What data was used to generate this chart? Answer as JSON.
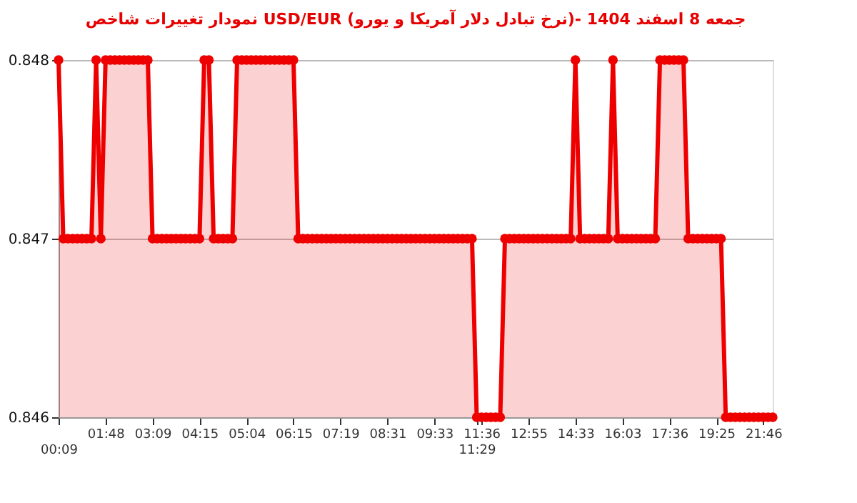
{
  "chart_data": {
    "type": "area",
    "title": "نمودار تغییرات شاخص USD/EUR (نرخ تبادل دلار آمریکا و یورو)- جمعه  8 اسفند 1404",
    "categories": [
      "00:09",
      null,
      null,
      null,
      null,
      null,
      null,
      null,
      null,
      null,
      "01:48",
      null,
      null,
      null,
      null,
      null,
      null,
      null,
      null,
      null,
      "03:09",
      null,
      null,
      null,
      null,
      null,
      null,
      null,
      null,
      null,
      "04:15",
      null,
      null,
      null,
      null,
      null,
      null,
      null,
      null,
      null,
      "05:04",
      null,
      null,
      null,
      null,
      null,
      null,
      null,
      null,
      null,
      "06:15",
      null,
      null,
      null,
      null,
      null,
      null,
      null,
      null,
      null,
      "07:19",
      null,
      null,
      null,
      null,
      null,
      null,
      null,
      null,
      null,
      "08:31",
      null,
      null,
      null,
      null,
      null,
      null,
      null,
      null,
      null,
      "09:33",
      null,
      null,
      null,
      null,
      null,
      null,
      null,
      null,
      "11:29",
      "11:36",
      null,
      null,
      null,
      null,
      null,
      null,
      null,
      null,
      null,
      "12:55",
      null,
      null,
      null,
      null,
      null,
      null,
      null,
      null,
      null,
      "14:33",
      null,
      null,
      null,
      null,
      null,
      null,
      null,
      null,
      null,
      "16:03",
      null,
      null,
      null,
      null,
      null,
      null,
      null,
      null,
      null,
      "17:36",
      null,
      null,
      null,
      null,
      null,
      null,
      null,
      null,
      null,
      "19:25",
      null,
      null,
      null,
      null,
      null,
      null,
      null,
      null,
      null,
      "21:46",
      null,
      null
    ],
    "series": [
      {
        "color": "#ee0000",
        "values": [
          0.848,
          0.847,
          0.847,
          0.847,
          0.847,
          0.847,
          0.847,
          0.847,
          0.848,
          0.847,
          0.848,
          0.848,
          0.848,
          0.848,
          0.848,
          0.848,
          0.848,
          0.848,
          0.848,
          0.848,
          0.847,
          0.847,
          0.847,
          0.847,
          0.847,
          0.847,
          0.847,
          0.847,
          0.847,
          0.847,
          0.847,
          0.848,
          0.848,
          0.847,
          0.847,
          0.847,
          0.847,
          0.847,
          0.848,
          0.848,
          0.848,
          0.848,
          0.848,
          0.848,
          0.848,
          0.848,
          0.848,
          0.848,
          0.848,
          0.848,
          0.848,
          0.847,
          0.847,
          0.847,
          0.847,
          0.847,
          0.847,
          0.847,
          0.847,
          0.847,
          0.847,
          0.847,
          0.847,
          0.847,
          0.847,
          0.847,
          0.847,
          0.847,
          0.847,
          0.847,
          0.847,
          0.847,
          0.847,
          0.847,
          0.847,
          0.847,
          0.847,
          0.847,
          0.847,
          0.847,
          0.847,
          0.847,
          0.847,
          0.847,
          0.847,
          0.847,
          0.847,
          0.847,
          0.847,
          0.846,
          0.846,
          0.846,
          0.846,
          0.846,
          0.846,
          0.847,
          0.847,
          0.847,
          0.847,
          0.847,
          0.847,
          0.847,
          0.847,
          0.847,
          0.847,
          0.847,
          0.847,
          0.847,
          0.847,
          0.847,
          0.848,
          0.847,
          0.847,
          0.847,
          0.847,
          0.847,
          0.847,
          0.847,
          0.848,
          0.847,
          0.847,
          0.847,
          0.847,
          0.847,
          0.847,
          0.847,
          0.847,
          0.847,
          0.848,
          0.848,
          0.848,
          0.848,
          0.848,
          0.848,
          0.847,
          0.847,
          0.847,
          0.847,
          0.847,
          0.847,
          0.847,
          0.847,
          0.846,
          0.846,
          0.846,
          0.846,
          0.846,
          0.846,
          0.846,
          0.846,
          0.846,
          0.846,
          0.846
        ]
      }
    ],
    "ylim": [
      0.846,
      0.848
    ],
    "yticks": [
      0.846,
      0.847,
      0.848
    ],
    "grid": "y",
    "marker": "circle",
    "line_style": "solid"
  }
}
